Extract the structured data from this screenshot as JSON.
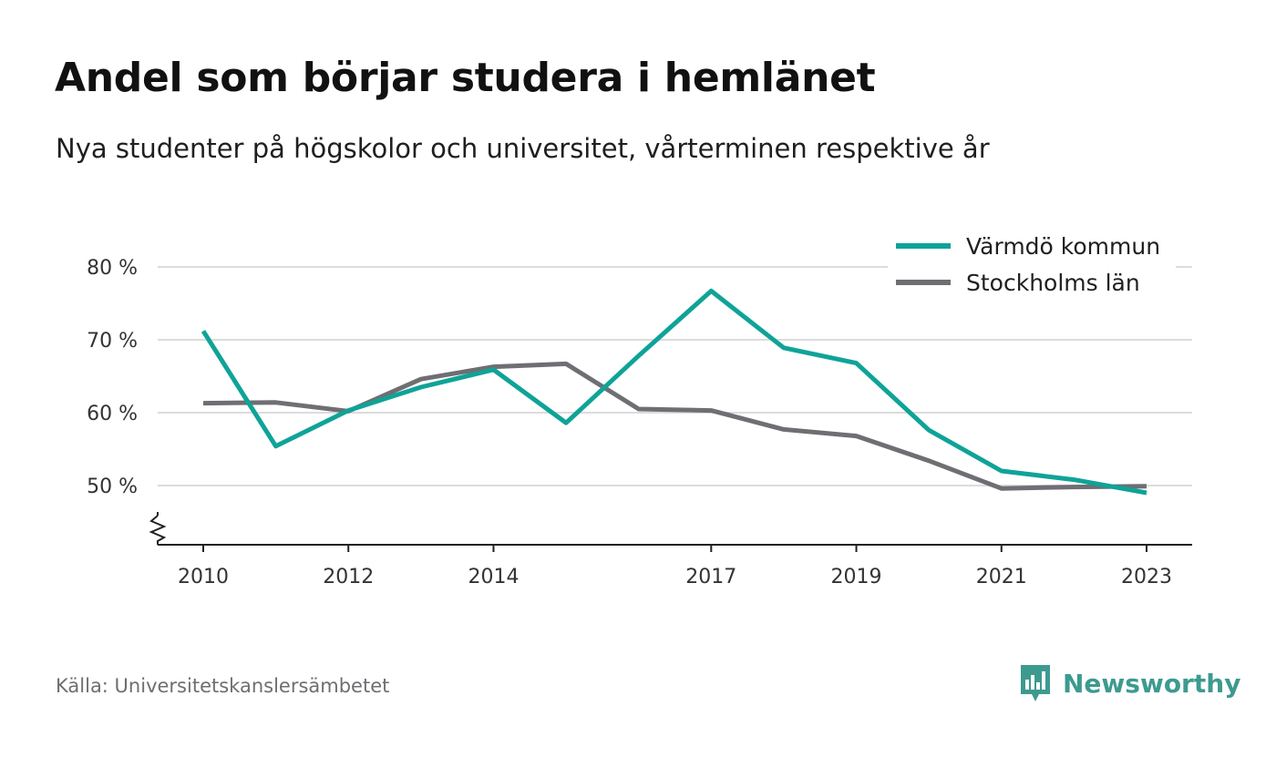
{
  "title": "Andel som börjar studera i hemlänet",
  "subtitle": "Nya studenter på högskolor och universitet, vårterminen respektive år",
  "source": "Källa: Universitetskanslersämbetet",
  "brand": {
    "name": "Newsworthy",
    "color": "#3d9a8f",
    "icon": "newsworthy-logo-icon"
  },
  "chart_data": {
    "type": "line",
    "title": "Andel som börjar studera i hemlänet",
    "subtitle": "Nya studenter på högskolor och universitet, vårterminen respektive år",
    "xlabel": "",
    "ylabel": "",
    "x": [
      2010,
      2011,
      2012,
      2013,
      2014,
      2015,
      2016,
      2017,
      2018,
      2019,
      2020,
      2021,
      2022,
      2023
    ],
    "x_ticks": [
      2010,
      2012,
      2014,
      2017,
      2019,
      2021,
      2023
    ],
    "x_tick_labels": [
      "2010",
      "2012",
      "2014",
      "2017",
      "2019",
      "2021",
      "2023"
    ],
    "y_ticks": [
      50,
      60,
      70,
      80
    ],
    "y_tick_labels": [
      "50 %",
      "60 %",
      "70 %",
      "80 %"
    ],
    "ylim": [
      42,
      80
    ],
    "y_axis_break": true,
    "grid": true,
    "legend_position": "top-right",
    "series": [
      {
        "name": "Värmdö kommun",
        "color": "#0fa398",
        "values": [
          71.2,
          55.4,
          60.3,
          63.5,
          65.9,
          58.6,
          67.8,
          76.7,
          68.9,
          66.8,
          57.6,
          52.0,
          50.8,
          49.0
        ]
      },
      {
        "name": "Stockholms län",
        "color": "#6e6e73",
        "values": [
          61.3,
          61.4,
          60.2,
          64.6,
          66.3,
          66.7,
          60.5,
          60.3,
          57.7,
          56.8,
          53.4,
          49.6,
          49.8,
          49.9
        ]
      }
    ]
  }
}
